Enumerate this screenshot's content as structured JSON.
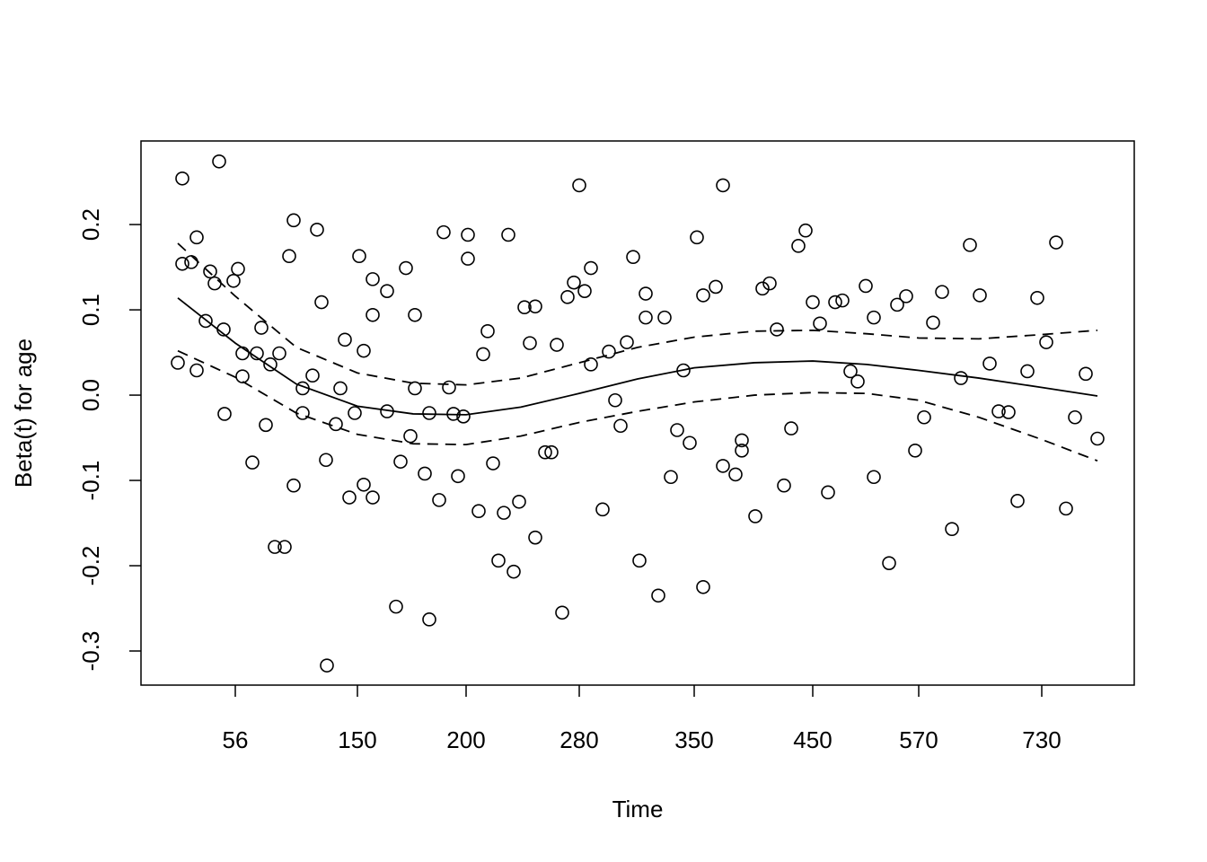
{
  "chart_data": {
    "type": "scatter",
    "xlabel": "Time",
    "ylabel": "Beta(t) for age",
    "xlim": [
      0,
      1106
    ],
    "ylim": [
      -0.34,
      0.298
    ],
    "xticks": [
      {
        "value": 105,
        "label": "56"
      },
      {
        "value": 241,
        "label": "150"
      },
      {
        "value": 362,
        "label": "200"
      },
      {
        "value": 488,
        "label": "280"
      },
      {
        "value": 616,
        "label": "350"
      },
      {
        "value": 748,
        "label": "450"
      },
      {
        "value": 866,
        "label": "570"
      },
      {
        "value": 1003,
        "label": "730"
      }
    ],
    "yticks": [
      -0.3,
      -0.2,
      -0.1,
      {
        "value": 0,
        "label": "0.0"
      },
      0.1,
      0.2
    ],
    "color": "#000000",
    "x": [
      41,
      46,
      46,
      56,
      62,
      62,
      72,
      77,
      82,
      87,
      92,
      93,
      103,
      108,
      113,
      113,
      124,
      129,
      134,
      139,
      144,
      149,
      154,
      160,
      165,
      170,
      170,
      180,
      180,
      191,
      196,
      201,
      206,
      207,
      217,
      222,
      227,
      232,
      238,
      243,
      248,
      248,
      258,
      258,
      258,
      274,
      274,
      284,
      289,
      295,
      300,
      305,
      305,
      316,
      321,
      321,
      332,
      337,
      343,
      348,
      353,
      359,
      364,
      364,
      376,
      381,
      386,
      392,
      398,
      404,
      409,
      415,
      421,
      427,
      433,
      439,
      439,
      450,
      457,
      463,
      469,
      475,
      482,
      488,
      494,
      501,
      501,
      514,
      521,
      528,
      534,
      541,
      548,
      555,
      562,
      562,
      576,
      583,
      590,
      597,
      604,
      611,
      619,
      626,
      626,
      640,
      648,
      648,
      662,
      669,
      669,
      684,
      692,
      700,
      708,
      716,
      724,
      732,
      740,
      748,
      756,
      765,
      773,
      781,
      790,
      798,
      807,
      816,
      816,
      833,
      842,
      852,
      862,
      872,
      882,
      892,
      903,
      913,
      923,
      934,
      945,
      955,
      966,
      976,
      987,
      998,
      1008,
      1019,
      1030,
      1040,
      1052,
      1065
    ],
    "values": [
      0.038,
      0.254,
      0.154,
      0.156,
      0.185,
      0.029,
      0.087,
      0.145,
      0.131,
      0.274,
      0.077,
      -0.022,
      0.134,
      0.148,
      0.049,
      0.022,
      -0.079,
      0.049,
      0.079,
      -0.035,
      0.036,
      -0.178,
      0.049,
      -0.178,
      0.163,
      0.205,
      -0.106,
      0.008,
      -0.021,
      0.023,
      0.194,
      0.109,
      -0.076,
      -0.317,
      -0.034,
      0.008,
      0.065,
      -0.12,
      -0.021,
      0.163,
      0.052,
      -0.105,
      -0.12,
      0.136,
      0.094,
      0.122,
      -0.019,
      -0.248,
      -0.078,
      0.149,
      -0.048,
      0.008,
      0.094,
      -0.092,
      -0.021,
      -0.263,
      -0.123,
      0.191,
      0.009,
      -0.022,
      -0.095,
      -0.025,
      0.188,
      0.16,
      -0.136,
      0.048,
      0.075,
      -0.08,
      -0.194,
      -0.138,
      0.188,
      -0.207,
      -0.125,
      0.103,
      0.061,
      0.104,
      -0.167,
      -0.067,
      -0.067,
      0.059,
      -0.255,
      0.115,
      0.132,
      0.246,
      0.122,
      0.149,
      0.036,
      -0.134,
      0.051,
      -0.006,
      -0.036,
      0.062,
      0.162,
      -0.194,
      0.119,
      0.091,
      -0.235,
      0.091,
      -0.096,
      -0.041,
      0.029,
      -0.056,
      0.185,
      0.117,
      -0.225,
      0.127,
      -0.083,
      0.246,
      -0.093,
      -0.053,
      -0.065,
      -0.142,
      0.125,
      0.131,
      0.077,
      -0.106,
      -0.039,
      0.175,
      0.193,
      0.109,
      0.084,
      -0.114,
      0.109,
      0.111,
      0.028,
      0.016,
      0.128,
      0.091,
      -0.096,
      -0.197,
      0.106,
      0.116,
      -0.065,
      -0.026,
      0.085,
      0.121,
      -0.157,
      0.02,
      0.176,
      0.117,
      0.037,
      -0.019,
      -0.02,
      -0.124,
      0.028,
      0.114,
      0.062,
      0.179,
      -0.133,
      -0.026,
      0.025,
      -0.051
    ],
    "curve_x": [
      41,
      105,
      173,
      241,
      303,
      362,
      423,
      488,
      553,
      616,
      683,
      748,
      808,
      866,
      933,
      1003,
      1065
    ],
    "curves": [
      {
        "dashed": false,
        "values": [
          0.114,
          0.061,
          0.013,
          -0.013,
          -0.022,
          -0.023,
          -0.014,
          0.002,
          0.019,
          0.032,
          0.038,
          0.04,
          0.036,
          0.029,
          0.02,
          0.009,
          -0.001
        ]
      },
      {
        "dashed": true,
        "values": [
          0.178,
          0.116,
          0.056,
          0.026,
          0.014,
          0.012,
          0.02,
          0.038,
          0.056,
          0.068,
          0.075,
          0.076,
          0.072,
          0.067,
          0.066,
          0.071,
          0.076
        ]
      },
      {
        "dashed": true,
        "values": [
          0.052,
          0.021,
          -0.021,
          -0.046,
          -0.057,
          -0.058,
          -0.048,
          -0.032,
          -0.019,
          -0.008,
          0,
          0.003,
          0.002,
          -0.006,
          -0.026,
          -0.052,
          -0.077
        ]
      }
    ]
  }
}
